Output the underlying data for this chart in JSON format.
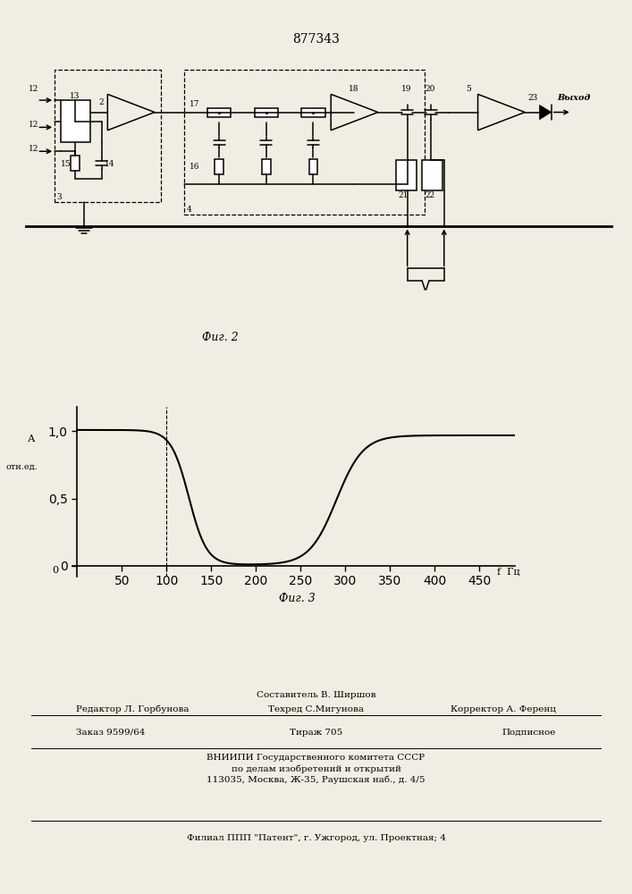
{
  "title": "877343",
  "fig2_caption": "Фиг. 2",
  "fig3_caption": "Фиг. 3",
  "bg_color": "#f2ede3",
  "graph_xticks": [
    50,
    100,
    150,
    200,
    250,
    300,
    350,
    400,
    450
  ],
  "graph_yticks": [
    0,
    0.5,
    1.0
  ],
  "graph_ytick_labels": [
    "0",
    "0,5",
    "1,0"
  ],
  "footer_comp": "Составитель В. Ширшов",
  "footer_techred": "Техред С.Мигунова",
  "footer_editor": "Редактор Л. Горбунова",
  "footer_corrector": "Корректор А. Ференц",
  "footer_order": "Заказ 9599/64",
  "footer_tirazh": "Тираж 705",
  "footer_podpisnoe": "Подписное",
  "footer_vniip1": "ВНИИПИ Государственного комитета СССР",
  "footer_vniip2": "по делам изобретений и открытий",
  "footer_vniip3": "113035, Москва, Ж-35, Раушская наб., д. 4/5",
  "footer_filial": "Филиал ППП \"Патент\", г. Ужгород, ул. Проектная; 4"
}
